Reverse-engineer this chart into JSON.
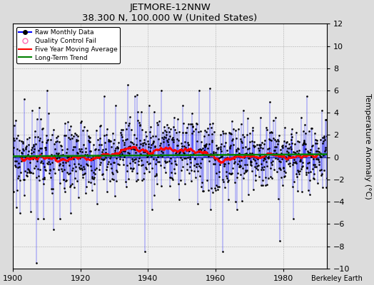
{
  "title": "JETMORE-12NNW",
  "subtitle": "38.300 N, 100.000 W (United States)",
  "ylabel": "Temperature Anomaly (°C)",
  "credit": "Berkeley Earth",
  "year_start": 1900,
  "year_end": 1993,
  "ylim": [
    -10,
    12
  ],
  "yticks": [
    -10,
    -8,
    -6,
    -4,
    -2,
    0,
    2,
    4,
    6,
    8,
    10,
    12
  ],
  "xticks": [
    1900,
    1920,
    1940,
    1960,
    1980
  ],
  "bg_color": "#dcdcdc",
  "plot_bg_color": "#f0f0f0",
  "seed": 17
}
